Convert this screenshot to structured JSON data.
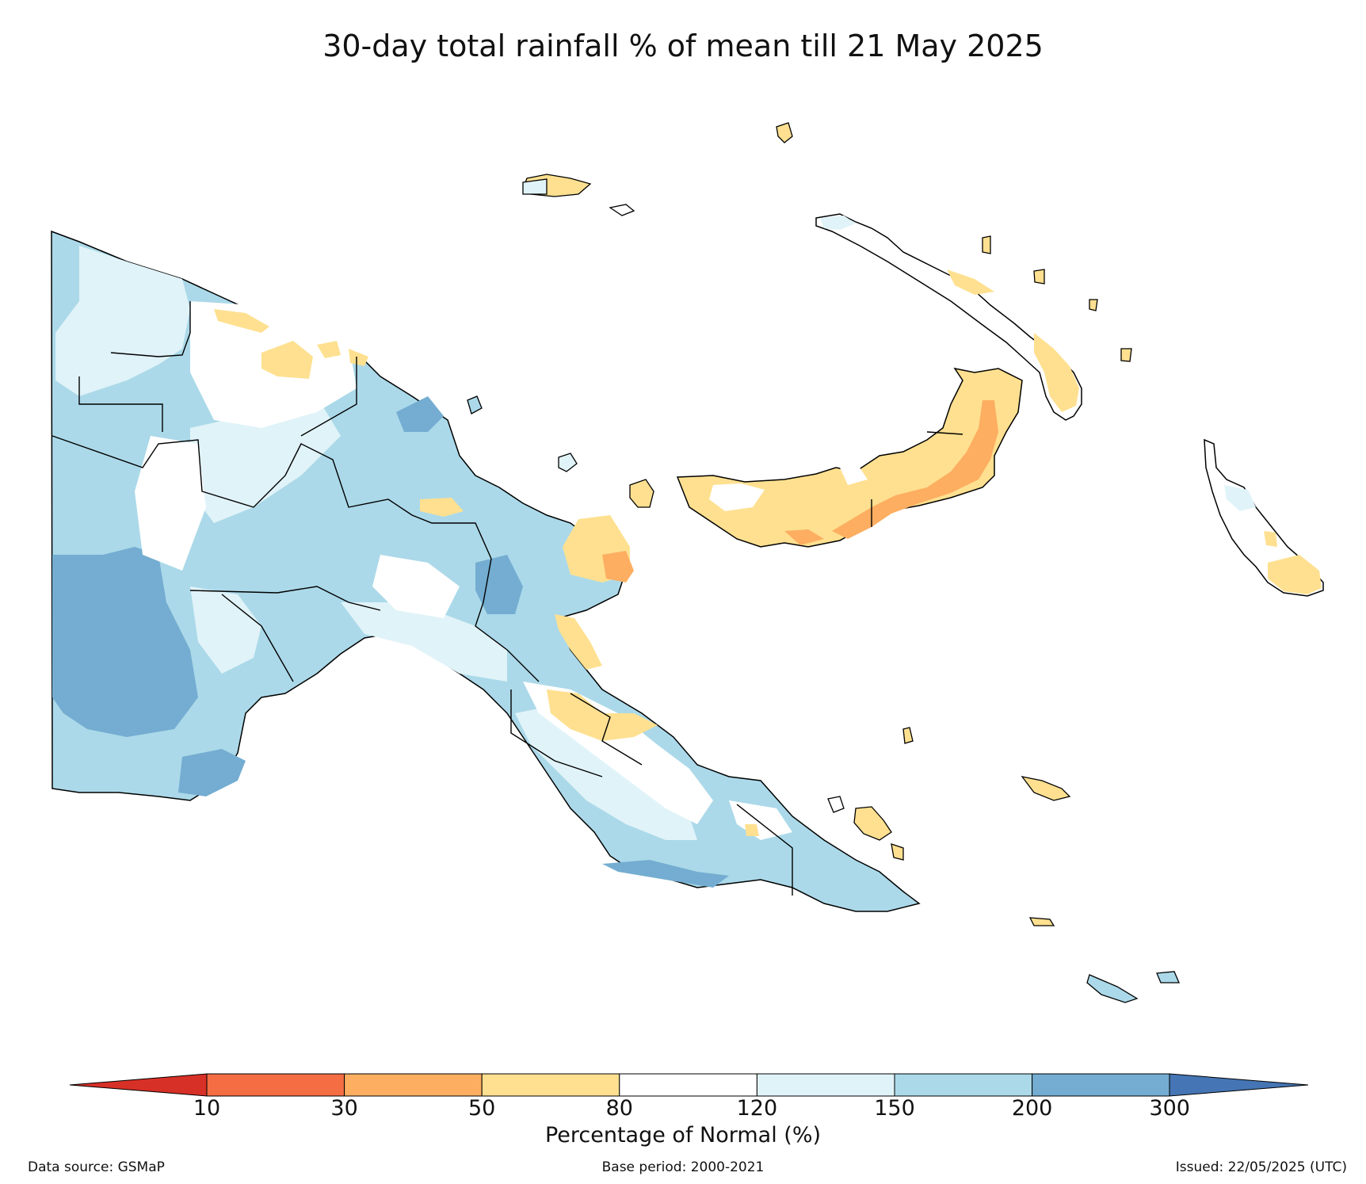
{
  "title": "30-day total rainfall % of mean till 21 May 2025",
  "colorbar": {
    "label": "Percentage of Normal (%)",
    "ticks": [
      "10",
      "30",
      "50",
      "80",
      "120",
      "150",
      "200",
      "300"
    ],
    "colors": {
      "below_10": "#d73027",
      "10_30": "#f46d43",
      "30_50": "#fdae61",
      "50_80": "#fee090",
      "80_120": "#ffffff",
      "120_150": "#e0f3f8",
      "150_200": "#abd9e9",
      "200_300": "#74add1",
      "above_300": "#4575b4"
    }
  },
  "footer": {
    "source": "Data source: GSMaP",
    "base_period": "Base period: 2000-2021",
    "issued": "Issued: 22/05/2025 (UTC)"
  }
}
